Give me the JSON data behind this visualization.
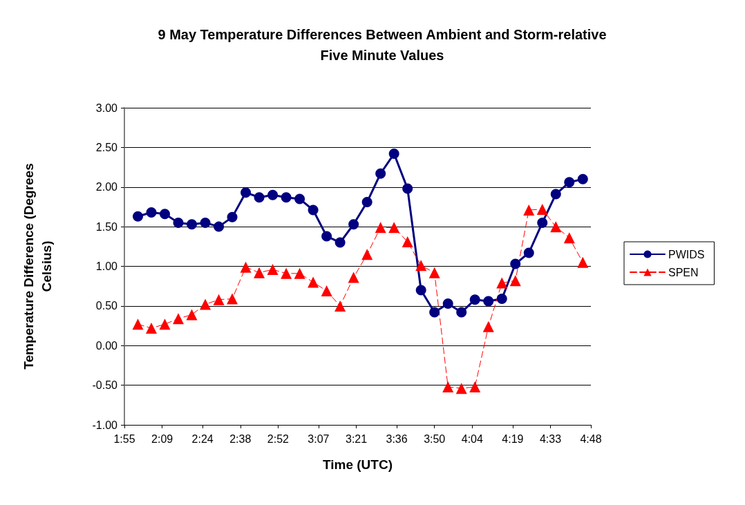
{
  "chart_data": {
    "type": "line",
    "title": "9 May Temperature Differences Between Ambient and Storm-relative\nFive Minute Values",
    "xlabel": "Time (UTC)",
    "ylabel": "Temperature Difference (Degrees\nCelsius)",
    "x": [
      2,
      2.0833,
      2.1667,
      2.25,
      2.3333,
      2.4167,
      2.5,
      2.5833,
      2.6667,
      2.75,
      2.8333,
      2.9167,
      3,
      3.0833,
      3.1667,
      3.25,
      3.3333,
      3.4167,
      3.5,
      3.5833,
      3.6667,
      3.75,
      3.8333,
      3.9167,
      4,
      4.0833,
      4.1667,
      4.25,
      4.3333,
      4.4167,
      4.5,
      4.5833,
      4.6667,
      4.75
    ],
    "series": [
      {
        "name": "PWIDS",
        "color": "#000080",
        "marker": "circle",
        "line_style": "solid",
        "values": [
          1.63,
          1.68,
          1.66,
          1.55,
          1.53,
          1.55,
          1.5,
          1.62,
          1.93,
          1.87,
          1.9,
          1.87,
          1.85,
          1.71,
          1.38,
          1.3,
          1.53,
          1.81,
          2.17,
          2.42,
          1.98,
          0.7,
          0.42,
          0.53,
          0.42,
          0.58,
          0.56,
          0.59,
          1.03,
          1.17,
          1.55,
          1.91,
          2.06,
          2.1
        ]
      },
      {
        "name": "SPEN",
        "color": "#ff0000",
        "marker": "triangle",
        "line_style": "dashed",
        "values": [
          0.27,
          0.22,
          0.27,
          0.34,
          0.39,
          0.52,
          0.58,
          0.59,
          0.99,
          0.92,
          0.96,
          0.91,
          0.91,
          0.8,
          0.69,
          0.5,
          0.86,
          1.15,
          1.49,
          1.49,
          1.31,
          1.01,
          0.92,
          -0.52,
          -0.54,
          -0.52,
          0.24,
          0.79,
          0.82,
          1.71,
          1.72,
          1.5,
          1.36,
          1.05
        ]
      }
    ],
    "xlim": [
      1.9167,
      4.8
    ],
    "xticks": [
      {
        "value": 1.9167,
        "label": "1:55"
      },
      {
        "value": 2.15,
        "label": "2:09"
      },
      {
        "value": 2.4,
        "label": "2:24"
      },
      {
        "value": 2.6333,
        "label": "2:38"
      },
      {
        "value": 2.8667,
        "label": "2:52"
      },
      {
        "value": 3.1167,
        "label": "3:07"
      },
      {
        "value": 3.35,
        "label": "3:21"
      },
      {
        "value": 3.6,
        "label": "3:36"
      },
      {
        "value": 3.8333,
        "label": "3:50"
      },
      {
        "value": 4.0667,
        "label": "4:04"
      },
      {
        "value": 4.3167,
        "label": "4:19"
      },
      {
        "value": 4.55,
        "label": "4:33"
      },
      {
        "value": 4.8,
        "label": "4:48"
      }
    ],
    "ylim": [
      -1,
      3
    ],
    "yticks": [
      {
        "value": -1,
        "label": "-1.00"
      },
      {
        "value": -0.5,
        "label": "-0.50"
      },
      {
        "value": 0,
        "label": "0.00"
      },
      {
        "value": 0.5,
        "label": "0.50"
      },
      {
        "value": 1,
        "label": "1.00"
      },
      {
        "value": 1.5,
        "label": "1.50"
      },
      {
        "value": 2,
        "label": "2.00"
      },
      {
        "value": 2.5,
        "label": "2.50"
      },
      {
        "value": 3,
        "label": "3.00"
      }
    ],
    "grid": "y",
    "legend": "right"
  }
}
